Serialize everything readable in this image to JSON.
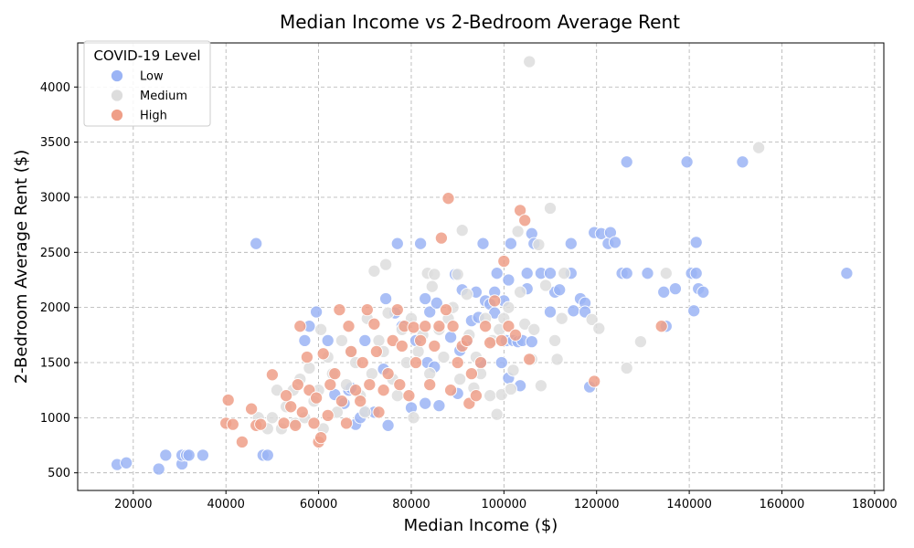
{
  "chart_data": {
    "type": "scatter",
    "title": "Median Income vs 2-Bedroom Average Rent",
    "xlabel": "Median Income ($)",
    "ylabel": "2-Bedroom Average Rent ($)",
    "xlim": [
      8000,
      182000
    ],
    "ylim": [
      340,
      4400
    ],
    "xticks": [
      20000,
      40000,
      60000,
      80000,
      100000,
      120000,
      140000,
      160000,
      180000
    ],
    "yticks": [
      500,
      1000,
      1500,
      2000,
      2500,
      3000,
      3500,
      4000
    ],
    "grid": true,
    "legend": {
      "title": "COVID-19 Level",
      "position": "top-left"
    },
    "series": [
      {
        "name": "Low",
        "color": "#9bb4f5",
        "points": [
          [
            16500,
            575
          ],
          [
            18500,
            590
          ],
          [
            25500,
            535
          ],
          [
            27000,
            660
          ],
          [
            30500,
            580
          ],
          [
            30500,
            660
          ],
          [
            31500,
            660
          ],
          [
            32000,
            660
          ],
          [
            35000,
            660
          ],
          [
            46500,
            2580
          ],
          [
            48000,
            660
          ],
          [
            49000,
            660
          ],
          [
            57000,
            1700
          ],
          [
            58000,
            1830
          ],
          [
            59500,
            1960
          ],
          [
            62000,
            1700
          ],
          [
            63500,
            1210
          ],
          [
            65500,
            1130
          ],
          [
            66500,
            1250
          ],
          [
            67000,
            1270
          ],
          [
            68000,
            940
          ],
          [
            69000,
            1000
          ],
          [
            70000,
            1060
          ],
          [
            70000,
            1700
          ],
          [
            72000,
            1050
          ],
          [
            74000,
            1440
          ],
          [
            74500,
            2080
          ],
          [
            75000,
            930
          ],
          [
            76500,
            1950
          ],
          [
            77000,
            2580
          ],
          [
            78000,
            1830
          ],
          [
            80000,
            1090
          ],
          [
            81000,
            1700
          ],
          [
            82000,
            2580
          ],
          [
            83000,
            2080
          ],
          [
            83000,
            1130
          ],
          [
            83500,
            1500
          ],
          [
            84000,
            1960
          ],
          [
            85000,
            1460
          ],
          [
            85500,
            2040
          ],
          [
            86000,
            1110
          ],
          [
            88500,
            1730
          ],
          [
            89500,
            2300
          ],
          [
            90000,
            1220
          ],
          [
            90500,
            1610
          ],
          [
            91000,
            2160
          ],
          [
            92000,
            1700
          ],
          [
            93000,
            1880
          ],
          [
            94000,
            2140
          ],
          [
            94500,
            1910
          ],
          [
            95000,
            1500
          ],
          [
            95500,
            2580
          ],
          [
            96000,
            2060
          ],
          [
            97000,
            2030
          ],
          [
            98000,
            1950
          ],
          [
            98000,
            2140
          ],
          [
            98500,
            2310
          ],
          [
            99500,
            1500
          ],
          [
            100000,
            2060
          ],
          [
            100500,
            1700
          ],
          [
            101000,
            2250
          ],
          [
            101000,
            1360
          ],
          [
            101500,
            2580
          ],
          [
            102000,
            1700
          ],
          [
            103000,
            1690
          ],
          [
            103500,
            1290
          ],
          [
            104000,
            1700
          ],
          [
            105000,
            2310
          ],
          [
            105000,
            2170
          ],
          [
            106000,
            2670
          ],
          [
            106000,
            1690
          ],
          [
            106500,
            2580
          ],
          [
            108000,
            2310
          ],
          [
            110000,
            2310
          ],
          [
            110000,
            1960
          ],
          [
            111000,
            2140
          ],
          [
            112000,
            2160
          ],
          [
            114500,
            2580
          ],
          [
            114500,
            2310
          ],
          [
            115000,
            1970
          ],
          [
            116500,
            2080
          ],
          [
            117500,
            2040
          ],
          [
            117500,
            1960
          ],
          [
            118500,
            1280
          ],
          [
            119500,
            2680
          ],
          [
            121000,
            2670
          ],
          [
            122500,
            2580
          ],
          [
            123000,
            2680
          ],
          [
            124000,
            2590
          ],
          [
            125500,
            2310
          ],
          [
            126500,
            2310
          ],
          [
            126500,
            3320
          ],
          [
            131000,
            2310
          ],
          [
            134500,
            2140
          ],
          [
            135000,
            1830
          ],
          [
            137000,
            2170
          ],
          [
            139500,
            3320
          ],
          [
            140500,
            2310
          ],
          [
            141000,
            1970
          ],
          [
            141500,
            2590
          ],
          [
            141500,
            2310
          ],
          [
            142000,
            2170
          ],
          [
            143000,
            2140
          ],
          [
            151500,
            3320
          ],
          [
            174000,
            2310
          ]
        ]
      },
      {
        "name": "Medium",
        "color": "#dddddd",
        "points": [
          [
            47000,
            1000
          ],
          [
            49000,
            900
          ],
          [
            50000,
            1000
          ],
          [
            51000,
            1250
          ],
          [
            52000,
            900
          ],
          [
            53000,
            1100
          ],
          [
            54500,
            1250
          ],
          [
            55000,
            950
          ],
          [
            56000,
            1350
          ],
          [
            57000,
            1000
          ],
          [
            58000,
            1450
          ],
          [
            59000,
            1150
          ],
          [
            60000,
            1250
          ],
          [
            60500,
            1800
          ],
          [
            61000,
            900
          ],
          [
            62000,
            1550
          ],
          [
            63000,
            1400
          ],
          [
            64000,
            1050
          ],
          [
            65000,
            1700
          ],
          [
            66000,
            1300
          ],
          [
            67000,
            1600
          ],
          [
            68000,
            1500
          ],
          [
            69000,
            1200
          ],
          [
            70000,
            1050
          ],
          [
            70500,
            1900
          ],
          [
            71500,
            1400
          ],
          [
            72000,
            2330
          ],
          [
            73000,
            1700
          ],
          [
            74000,
            1600
          ],
          [
            74500,
            2390
          ],
          [
            75000,
            1950
          ],
          [
            76000,
            1350
          ],
          [
            77000,
            1200
          ],
          [
            78000,
            1800
          ],
          [
            79000,
            1500
          ],
          [
            80000,
            1900
          ],
          [
            80500,
            1000
          ],
          [
            81500,
            1600
          ],
          [
            82500,
            1750
          ],
          [
            83500,
            2310
          ],
          [
            84000,
            1400
          ],
          [
            84500,
            2190
          ],
          [
            85000,
            2300
          ],
          [
            86000,
            1800
          ],
          [
            87000,
            1550
          ],
          [
            88000,
            1900
          ],
          [
            89000,
            2000
          ],
          [
            90000,
            2300
          ],
          [
            90500,
            1350
          ],
          [
            91000,
            2700
          ],
          [
            92000,
            2120
          ],
          [
            92500,
            1750
          ],
          [
            93500,
            1270
          ],
          [
            94000,
            1550
          ],
          [
            95000,
            1400
          ],
          [
            96000,
            1900
          ],
          [
            97000,
            1200
          ],
          [
            97500,
            1700
          ],
          [
            98500,
            1030
          ],
          [
            99000,
            1800
          ],
          [
            99500,
            1210
          ],
          [
            100000,
            1900
          ],
          [
            101000,
            2000
          ],
          [
            101500,
            1260
          ],
          [
            102000,
            1430
          ],
          [
            103000,
            2690
          ],
          [
            103500,
            2140
          ],
          [
            104500,
            1850
          ],
          [
            105500,
            4230
          ],
          [
            106000,
            1530
          ],
          [
            106500,
            1800
          ],
          [
            107500,
            2570
          ],
          [
            108000,
            1290
          ],
          [
            109000,
            2200
          ],
          [
            110000,
            2900
          ],
          [
            111000,
            1700
          ],
          [
            111500,
            1530
          ],
          [
            112500,
            1900
          ],
          [
            113000,
            2310
          ],
          [
            119000,
            1890
          ],
          [
            120500,
            1810
          ],
          [
            129500,
            1690
          ],
          [
            126500,
            1450
          ],
          [
            135000,
            2310
          ],
          [
            155000,
            3450
          ]
        ]
      },
      {
        "name": "High",
        "color": "#ef9f88",
        "points": [
          [
            40000,
            950
          ],
          [
            40500,
            1160
          ],
          [
            41500,
            940
          ],
          [
            43500,
            780
          ],
          [
            45500,
            1080
          ],
          [
            46500,
            930
          ],
          [
            47500,
            940
          ],
          [
            50000,
            1390
          ],
          [
            52500,
            950
          ],
          [
            53000,
            1200
          ],
          [
            54000,
            1100
          ],
          [
            55000,
            930
          ],
          [
            55500,
            1300
          ],
          [
            56000,
            1830
          ],
          [
            56500,
            1050
          ],
          [
            57500,
            1550
          ],
          [
            58000,
            1250
          ],
          [
            59000,
            950
          ],
          [
            59500,
            1180
          ],
          [
            60000,
            780
          ],
          [
            60500,
            820
          ],
          [
            61000,
            1580
          ],
          [
            62000,
            1020
          ],
          [
            62500,
            1300
          ],
          [
            63500,
            1400
          ],
          [
            64500,
            1980
          ],
          [
            65000,
            1150
          ],
          [
            66000,
            950
          ],
          [
            66500,
            1830
          ],
          [
            67000,
            1600
          ],
          [
            68000,
            1250
          ],
          [
            69000,
            1150
          ],
          [
            69500,
            1500
          ],
          [
            70500,
            1980
          ],
          [
            71000,
            1300
          ],
          [
            72000,
            1850
          ],
          [
            72500,
            1600
          ],
          [
            73000,
            1050
          ],
          [
            74000,
            1250
          ],
          [
            75000,
            1400
          ],
          [
            76000,
            1700
          ],
          [
            77000,
            1980
          ],
          [
            77500,
            1300
          ],
          [
            78000,
            1650
          ],
          [
            78500,
            1830
          ],
          [
            79500,
            1200
          ],
          [
            80500,
            1820
          ],
          [
            81000,
            1500
          ],
          [
            82000,
            1700
          ],
          [
            83000,
            1830
          ],
          [
            84000,
            1300
          ],
          [
            85000,
            1650
          ],
          [
            86000,
            1830
          ],
          [
            86500,
            2630
          ],
          [
            87500,
            1980
          ],
          [
            88000,
            2990
          ],
          [
            88500,
            1250
          ],
          [
            89000,
            1830
          ],
          [
            90000,
            1500
          ],
          [
            91000,
            1650
          ],
          [
            92000,
            1700
          ],
          [
            92500,
            1130
          ],
          [
            93000,
            1400
          ],
          [
            94000,
            1200
          ],
          [
            95000,
            1500
          ],
          [
            96000,
            1830
          ],
          [
            97000,
            1680
          ],
          [
            98000,
            2060
          ],
          [
            99500,
            1700
          ],
          [
            100000,
            2420
          ],
          [
            101000,
            1830
          ],
          [
            102500,
            1750
          ],
          [
            103500,
            2880
          ],
          [
            104500,
            2790
          ],
          [
            105500,
            1530
          ],
          [
            119500,
            1330
          ],
          [
            134000,
            1830
          ]
        ]
      }
    ]
  }
}
